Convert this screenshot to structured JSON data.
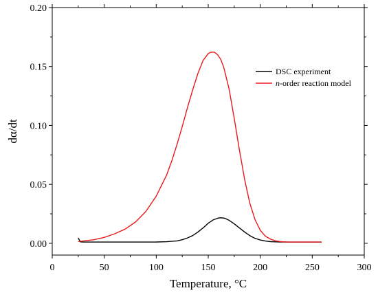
{
  "chart_data": {
    "type": "line",
    "xlabel": "Temperature, °C",
    "ylabel": "dα/dt",
    "xlim": [
      0,
      300
    ],
    "ylim": [
      -0.01,
      0.2
    ],
    "xticks": [
      0,
      50,
      100,
      150,
      200,
      250,
      300
    ],
    "yticks": [
      0.0,
      0.05,
      0.1,
      0.15,
      0.2
    ],
    "ytick_labels": [
      "0.00",
      "0.05",
      "0.10",
      "0.15",
      "0.20"
    ],
    "grid": false,
    "legend_position": "top-right",
    "series": [
      {
        "name": "DSC experiment",
        "color": "#000000",
        "x": [
          25,
          27,
          30,
          40,
          60,
          80,
          100,
          110,
          120,
          125,
          130,
          135,
          140,
          145,
          150,
          155,
          160,
          163,
          166,
          170,
          175,
          180,
          185,
          190,
          195,
          200,
          205,
          210,
          215,
          220,
          230,
          240,
          250,
          259
        ],
        "y": [
          0.0045,
          0.0012,
          0.001,
          0.001,
          0.001,
          0.001,
          0.0011,
          0.0013,
          0.002,
          0.003,
          0.0045,
          0.0065,
          0.0095,
          0.013,
          0.017,
          0.02,
          0.0215,
          0.0216,
          0.0212,
          0.0195,
          0.0165,
          0.013,
          0.0095,
          0.0065,
          0.0042,
          0.0028,
          0.0019,
          0.0014,
          0.0012,
          0.0011,
          0.001,
          0.001,
          0.001,
          0.001
        ]
      },
      {
        "name": "n-order reaction model",
        "name_italic_prefix": "n",
        "name_rest": "-order reaction model",
        "color": "#e8191c",
        "x": [
          25,
          30,
          40,
          50,
          60,
          70,
          80,
          90,
          100,
          110,
          115,
          120,
          125,
          130,
          135,
          140,
          145,
          150,
          153,
          156,
          159,
          162,
          165,
          170,
          175,
          180,
          185,
          190,
          195,
          200,
          205,
          210,
          215,
          220,
          225,
          230,
          240,
          250,
          259
        ],
        "y": [
          0.0015,
          0.002,
          0.003,
          0.005,
          0.008,
          0.012,
          0.018,
          0.027,
          0.04,
          0.058,
          0.07,
          0.084,
          0.099,
          0.115,
          0.13,
          0.144,
          0.155,
          0.161,
          0.1622,
          0.162,
          0.16,
          0.156,
          0.149,
          0.131,
          0.106,
          0.079,
          0.054,
          0.034,
          0.02,
          0.011,
          0.006,
          0.0035,
          0.002,
          0.0014,
          0.0011,
          0.001,
          0.001,
          0.001,
          0.001
        ]
      }
    ]
  }
}
